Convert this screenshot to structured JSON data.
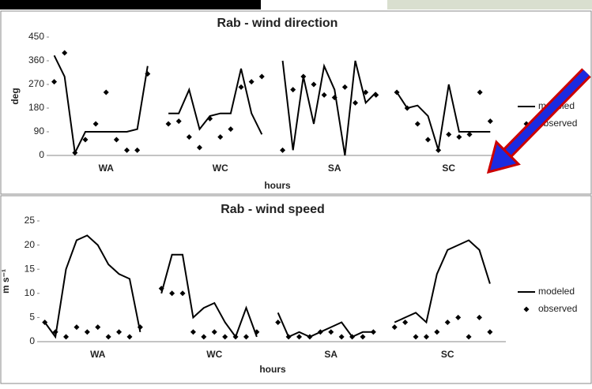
{
  "chart_data": [
    {
      "type": "line",
      "title": "Rab - wind direction",
      "y_label": "deg",
      "x_label": "hours",
      "categories": [
        null,
        null,
        null,
        null,
        null,
        "WA",
        null,
        null,
        null,
        null,
        null,
        null,
        null,
        null,
        null,
        null,
        "WC",
        null,
        null,
        null,
        null,
        null,
        null,
        null,
        null,
        null,
        null,
        "SA",
        null,
        null,
        null,
        null,
        null,
        null,
        null,
        null,
        null,
        null,
        "SC",
        null,
        null,
        null,
        null,
        null
      ],
      "ylim": [
        0,
        450
      ],
      "yticks": [
        0,
        90,
        180,
        270,
        360,
        450
      ],
      "grid": false,
      "series": [
        {
          "name": "modeled",
          "color": "#000000",
          "marker": "line",
          "values": [
            380,
            300,
            10,
            90,
            90,
            90,
            90,
            90,
            100,
            340,
            null,
            160,
            160,
            250,
            100,
            150,
            160,
            160,
            330,
            160,
            80,
            null,
            360,
            20,
            300,
            120,
            340,
            250,
            0,
            360,
            200,
            240,
            null,
            240,
            180,
            190,
            150,
            20,
            270,
            90,
            90,
            90,
            90,
            null
          ]
        },
        {
          "name": "observed",
          "color": "#000000",
          "marker": "diamond",
          "values": [
            280,
            390,
            10,
            60,
            120,
            240,
            60,
            20,
            20,
            310,
            null,
            120,
            130,
            70,
            30,
            140,
            70,
            100,
            260,
            280,
            300,
            null,
            20,
            250,
            300,
            270,
            230,
            220,
            260,
            200,
            240,
            230,
            null,
            240,
            180,
            120,
            60,
            20,
            80,
            70,
            80,
            240,
            130,
            null
          ]
        }
      ]
    },
    {
      "type": "line",
      "title": "Rab - wind speed",
      "y_label": "m s⁻¹",
      "x_label": "hours",
      "categories": [
        null,
        null,
        null,
        null,
        null,
        "WA",
        null,
        null,
        null,
        null,
        null,
        null,
        null,
        null,
        null,
        null,
        "WC",
        null,
        null,
        null,
        null,
        null,
        null,
        null,
        null,
        null,
        null,
        "SA",
        null,
        null,
        null,
        null,
        null,
        null,
        null,
        null,
        null,
        null,
        "SC",
        null,
        null,
        null,
        null,
        null
      ],
      "ylim": [
        0,
        25
      ],
      "yticks": [
        0,
        5,
        10,
        15,
        20,
        25
      ],
      "grid": false,
      "series": [
        {
          "name": "modeled",
          "color": "#000000",
          "marker": "line",
          "values": [
            4,
            1,
            15,
            21,
            22,
            20,
            16,
            14,
            13,
            2,
            null,
            10,
            18,
            18,
            5,
            7,
            8,
            4,
            1,
            7,
            1,
            null,
            6,
            1,
            2,
            1,
            2,
            3,
            4,
            1,
            2,
            2,
            null,
            4,
            5,
            6,
            4,
            14,
            19,
            20,
            21,
            19,
            12,
            null
          ]
        },
        {
          "name": "observed",
          "color": "#000000",
          "marker": "diamond",
          "values": [
            4,
            2,
            1,
            3,
            2,
            3,
            1,
            2,
            1,
            3,
            null,
            11,
            10,
            10,
            2,
            1,
            2,
            1,
            1,
            1,
            2,
            null,
            4,
            1,
            1,
            1,
            2,
            2,
            1,
            1,
            1,
            2,
            null,
            3,
            4,
            1,
            1,
            2,
            4,
            5,
            1,
            5,
            2,
            null
          ]
        }
      ]
    }
  ]
}
